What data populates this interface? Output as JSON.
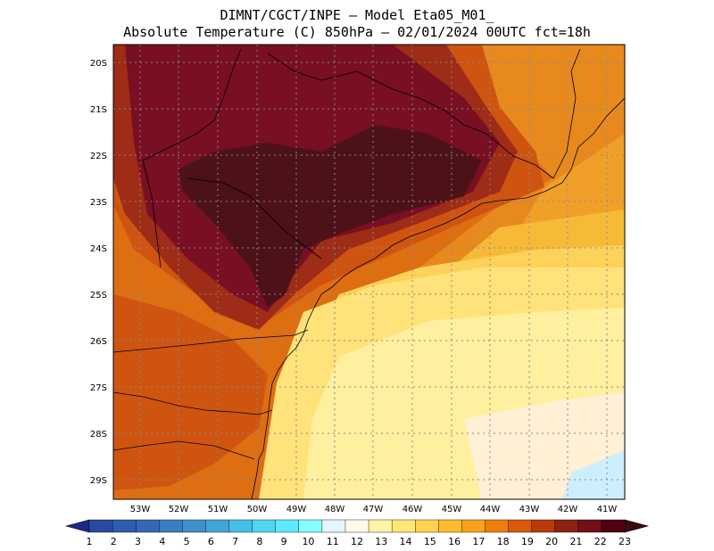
{
  "header": {
    "line1": "DIMNT/CGCT/INPE —  Model Eta05_M01_",
    "line2": "Absolute Temperature (C) 850hPa —  02/01/2024 00UTC fct=18h"
  },
  "axes": {
    "lat_labels": [
      "20S",
      "21S",
      "22S",
      "23S",
      "24S",
      "25S",
      "26S",
      "27S",
      "28S",
      "29S"
    ],
    "lon_labels": [
      "53W",
      "52W",
      "51W",
      "50W",
      "49W",
      "48W",
      "47W",
      "46W",
      "45W",
      "44W",
      "43W",
      "42W",
      "41W"
    ]
  },
  "colorbar": {
    "labels": [
      "1",
      "2",
      "3",
      "4",
      "5",
      "6",
      "7",
      "8",
      "9",
      "10",
      "11",
      "12",
      "13",
      "14",
      "15",
      "16",
      "17",
      "18",
      "19",
      "20",
      "21",
      "22",
      "23"
    ],
    "colors": [
      "#2a4aa0",
      "#2f5bb0",
      "#3468b6",
      "#3a7dc0",
      "#3f8fca",
      "#43a5d6",
      "#48bfe6",
      "#50d6f0",
      "#5eeafb",
      "#86fcff",
      "#e4f6fb",
      "#fffbe8",
      "#fff3a8",
      "#ffe676",
      "#ffd24f",
      "#ffbd2e",
      "#f9a11b",
      "#ec7d0e",
      "#d85a0a",
      "#b83a0a",
      "#902010",
      "#701018",
      "#500014"
    ],
    "low_arrow_color": "#1a2a88",
    "high_arrow_color": "#3a0b10"
  },
  "palette": {
    "temp_12": "#fff0d6",
    "temp_13": "#fff0a0",
    "temp_14": "#ffe27a",
    "temp_15": "#fdd25a",
    "temp_16": "#f7ba36",
    "temp_17": "#f0a028",
    "temp_18": "#e8891e",
    "temp_19": "#de6e12",
    "temp_20": "#cf5410",
    "temp_21": "#9e2c16",
    "temp_22": "#780f22",
    "temp_23": "#4c1218",
    "cold_patch": "#cdeefc"
  }
}
